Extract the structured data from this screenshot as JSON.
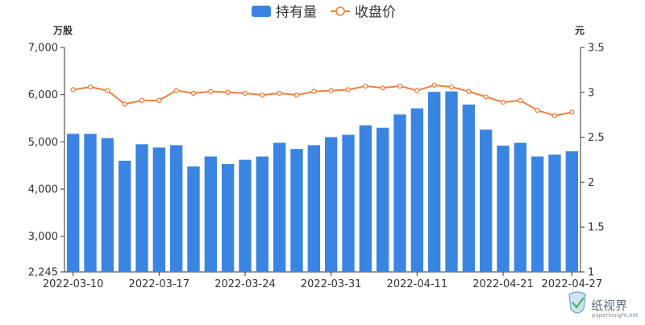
{
  "chart_data": {
    "type": "bar",
    "title": "",
    "legend": [
      "持有量",
      "收盘价"
    ],
    "left_axis": {
      "unit": "万股",
      "min": 2245,
      "max": 7000,
      "ticks": [
        "2,245",
        "3,000",
        "4,000",
        "5,000",
        "6,000",
        "7,000"
      ],
      "tick_values": [
        2245,
        3000,
        4000,
        5000,
        6000,
        7000
      ]
    },
    "right_axis": {
      "unit": "元",
      "min": 1,
      "max": 3.5,
      "ticks": [
        "1",
        "1.5",
        "2",
        "2.5",
        "3",
        "3.5"
      ],
      "tick_values": [
        1,
        1.5,
        2,
        2.5,
        3,
        3.5
      ]
    },
    "x_tick_labels": [
      {
        "index": 0,
        "label": "2022-03-10"
      },
      {
        "index": 5,
        "label": "2022-03-17"
      },
      {
        "index": 10,
        "label": "2022-03-24"
      },
      {
        "index": 15,
        "label": "2022-03-31"
      },
      {
        "index": 20,
        "label": "2022-04-11"
      },
      {
        "index": 25,
        "label": "2022-04-21"
      },
      {
        "index": 29,
        "label": "2022-04-27"
      }
    ],
    "category_count": 30,
    "series": [
      {
        "name": "持有量",
        "type": "bar",
        "axis": "left",
        "color": "#3a85e2",
        "values": [
          5170,
          5170,
          5080,
          4600,
          4950,
          4880,
          4930,
          4480,
          4690,
          4530,
          4620,
          4690,
          4980,
          4850,
          4930,
          5100,
          5150,
          5350,
          5300,
          5580,
          5710,
          6060,
          6070,
          5790,
          5260,
          4920,
          4980,
          4690,
          4730,
          4800
        ]
      },
      {
        "name": "收盘价",
        "type": "line",
        "axis": "right",
        "color": "#f07f3c",
        "values": [
          3.03,
          3.06,
          3.02,
          2.87,
          2.91,
          2.91,
          3.02,
          2.99,
          3.01,
          3.0,
          2.99,
          2.97,
          2.99,
          2.97,
          3.01,
          3.02,
          3.03,
          3.07,
          3.05,
          3.07,
          3.02,
          3.08,
          3.06,
          3.01,
          2.95,
          2.89,
          2.91,
          2.8,
          2.74,
          2.78
        ]
      }
    ]
  },
  "watermark": {
    "text": "纸视界",
    "sub": "paperinsight.net"
  }
}
